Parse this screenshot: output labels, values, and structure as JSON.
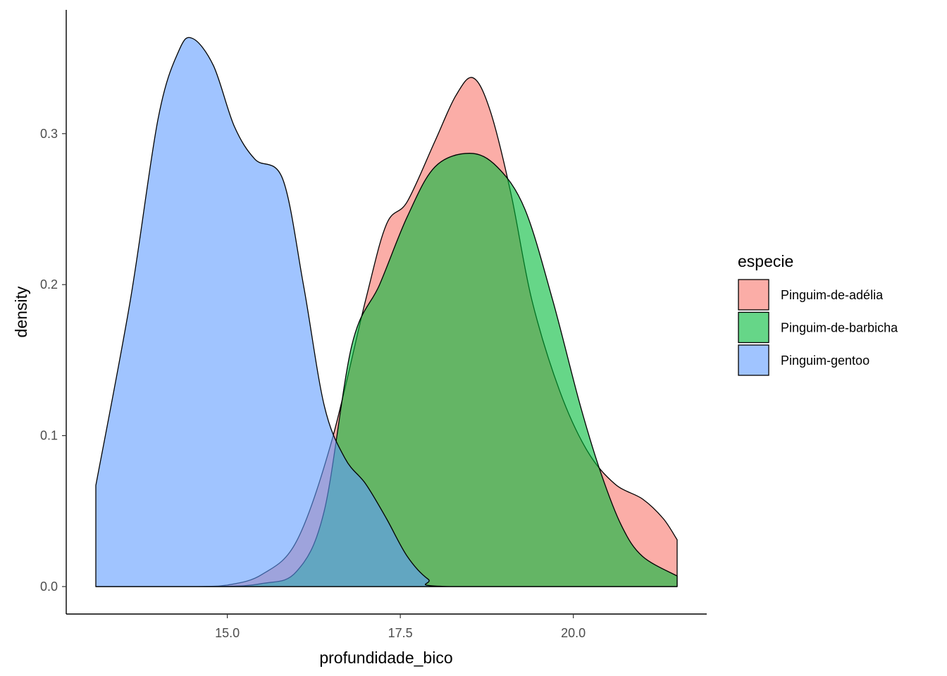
{
  "chart_data": {
    "type": "area",
    "subtype": "density",
    "xlabel": "profundidade_bico",
    "ylabel": "density",
    "xlim": [
      13.1,
      21.5
    ],
    "ylim": [
      0.0,
      0.37
    ],
    "x_ticks": [
      15.0,
      17.5,
      20.0
    ],
    "x_tick_labels": [
      "15.0",
      "17.5",
      "20.0"
    ],
    "y_ticks": [
      0.0,
      0.1,
      0.2,
      0.3
    ],
    "y_tick_labels": [
      "0.0",
      "0.1",
      "0.2",
      "0.3"
    ],
    "grid": false,
    "legend": {
      "title": "especie",
      "position": "right"
    },
    "fill_opacity": 0.6,
    "series": [
      {
        "name": "Pinguim-de-adélia",
        "color": "#F8766D",
        "points": [
          [
            13.1,
            0.0
          ],
          [
            14.5,
            0.0
          ],
          [
            15.0,
            0.001
          ],
          [
            15.5,
            0.008
          ],
          [
            16.0,
            0.03
          ],
          [
            16.5,
            0.095
          ],
          [
            17.0,
            0.19
          ],
          [
            17.3,
            0.24
          ],
          [
            17.6,
            0.255
          ],
          [
            18.0,
            0.295
          ],
          [
            18.3,
            0.325
          ],
          [
            18.55,
            0.337
          ],
          [
            18.8,
            0.315
          ],
          [
            19.1,
            0.26
          ],
          [
            19.4,
            0.19
          ],
          [
            19.8,
            0.13
          ],
          [
            20.2,
            0.09
          ],
          [
            20.6,
            0.068
          ],
          [
            21.0,
            0.058
          ],
          [
            21.3,
            0.045
          ],
          [
            21.5,
            0.031
          ]
        ]
      },
      {
        "name": "Pinguim-de-barbicha",
        "color": "#00BA38",
        "points": [
          [
            13.1,
            0.0
          ],
          [
            14.8,
            0.0
          ],
          [
            15.5,
            0.002
          ],
          [
            16.0,
            0.01
          ],
          [
            16.4,
            0.05
          ],
          [
            16.8,
            0.16
          ],
          [
            17.2,
            0.2
          ],
          [
            17.6,
            0.245
          ],
          [
            18.0,
            0.278
          ],
          [
            18.5,
            0.287
          ],
          [
            18.9,
            0.278
          ],
          [
            19.3,
            0.25
          ],
          [
            19.7,
            0.19
          ],
          [
            20.1,
            0.12
          ],
          [
            20.4,
            0.075
          ],
          [
            20.7,
            0.04
          ],
          [
            21.0,
            0.02
          ],
          [
            21.5,
            0.007
          ]
        ]
      },
      {
        "name": "Pinguim-gentoo",
        "color": "#619CFF",
        "points": [
          [
            13.1,
            0.067
          ],
          [
            13.6,
            0.19
          ],
          [
            14.0,
            0.31
          ],
          [
            14.3,
            0.355
          ],
          [
            14.5,
            0.363
          ],
          [
            14.8,
            0.345
          ],
          [
            15.1,
            0.305
          ],
          [
            15.4,
            0.283
          ],
          [
            15.8,
            0.27
          ],
          [
            16.1,
            0.2
          ],
          [
            16.4,
            0.12
          ],
          [
            16.7,
            0.085
          ],
          [
            17.0,
            0.068
          ],
          [
            17.3,
            0.045
          ],
          [
            17.6,
            0.02
          ],
          [
            17.9,
            0.005
          ],
          [
            18.2,
            0.0
          ],
          [
            21.5,
            0.0
          ]
        ]
      }
    ]
  }
}
